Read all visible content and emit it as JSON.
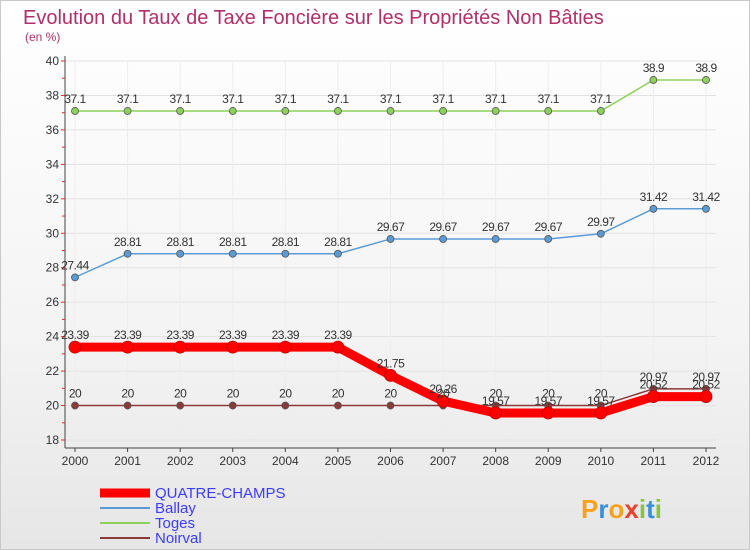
{
  "chart_data": {
    "type": "line",
    "title": "Evolution du Taux de Taxe Foncière sur les Propriétés Non Bâties",
    "subtitle": "(en %)",
    "xlabel": "",
    "ylabel": "",
    "categories": [
      "2000",
      "2001",
      "2002",
      "2003",
      "2004",
      "2005",
      "2006",
      "2007",
      "2008",
      "2009",
      "2010",
      "2011",
      "2012"
    ],
    "ylim": [
      18,
      40
    ],
    "yticks": [
      18,
      20,
      22,
      24,
      26,
      28,
      30,
      32,
      34,
      36,
      38,
      40
    ],
    "legend_position": "bottom-left",
    "series": [
      {
        "name": "QUATRE-CHAMPS",
        "color": "#ff0000",
        "values": [
          23.39,
          23.39,
          23.39,
          23.39,
          23.39,
          23.39,
          21.75,
          20.26,
          19.57,
          19.57,
          19.57,
          20.52,
          20.52
        ],
        "labels": [
          "23.39",
          "23.39",
          "23.39",
          "23.39",
          "23.39",
          "23.39",
          "21.75",
          "20.26",
          "19.57",
          "19.57",
          "19.57",
          "20.52",
          "20.52"
        ]
      },
      {
        "name": "Ballay",
        "color": "#5b9bd5",
        "values": [
          27.44,
          28.81,
          28.81,
          28.81,
          28.81,
          28.81,
          29.67,
          29.67,
          29.67,
          29.67,
          29.97,
          31.42,
          31.42
        ],
        "labels": [
          "27.44",
          "28.81",
          "28.81",
          "28.81",
          "28.81",
          "28.81",
          "29.67",
          "29.67",
          "29.67",
          "29.67",
          "29.97",
          "31.42",
          "31.42"
        ]
      },
      {
        "name": "Toges",
        "color": "#8ed15a",
        "values": [
          37.1,
          37.1,
          37.1,
          37.1,
          37.1,
          37.1,
          37.1,
          37.1,
          37.1,
          37.1,
          37.1,
          38.9,
          38.9
        ],
        "labels": [
          "37.1",
          "37.1",
          "37.1",
          "37.1",
          "37.1",
          "37.1",
          "37.1",
          "37.1",
          "37.1",
          "37.1",
          "37.1",
          "38.9",
          "38.9"
        ]
      },
      {
        "name": "Noirval",
        "color": "#8b3a3a",
        "values": [
          20,
          20,
          20,
          20,
          20,
          20,
          20,
          20,
          20,
          20,
          20,
          20.97,
          20.97
        ],
        "labels": [
          "20",
          "20",
          "20",
          "20",
          "20",
          "20",
          "20",
          "20",
          "20",
          "20",
          "20",
          "20.97",
          "20.97"
        ]
      }
    ]
  },
  "brand": {
    "logo_text": "Proxiti",
    "colors": [
      "#f7a21b",
      "#3b8fd8",
      "#8ac43f",
      "#e8412c"
    ]
  }
}
